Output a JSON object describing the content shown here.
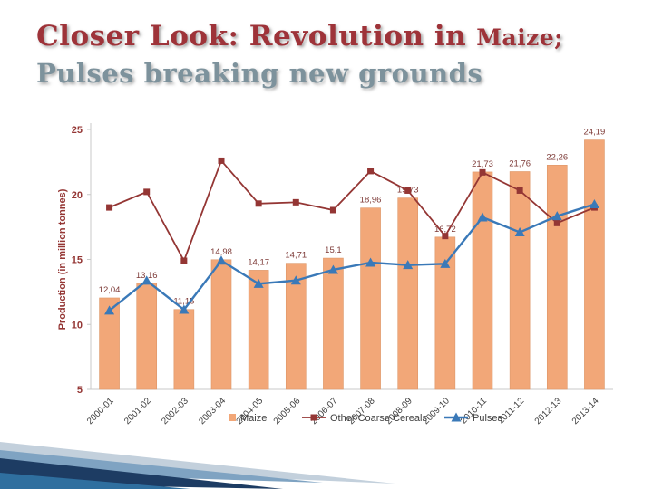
{
  "slide": {
    "title": {
      "line1": "Closer Look: Revolution in",
      "line1_emphasis": "Maize;",
      "line2": "Pulses breaking new grounds",
      "line1_color": "#9E3339",
      "line2_color": "#7D929C"
    }
  },
  "chart_data": {
    "type": "bar",
    "subtype": "combo-bar-and-lines",
    "title": "",
    "xlabel": "",
    "ylabel": "Production (in million tonnes)",
    "ylim": [
      5,
      25
    ],
    "yticks": [
      25,
      20,
      15,
      10,
      5
    ],
    "grid": false,
    "legend_position": "bottom",
    "categories": [
      "2000-01",
      "2001-02",
      "2002-03",
      "2003-04",
      "2004-05",
      "2005-06",
      "2006-07",
      "2007-08",
      "2008-09",
      "2009-10",
      "2010-11",
      "2011-12",
      "2012-13",
      "2013-14"
    ],
    "series": [
      {
        "name": "Maize",
        "render": "bar",
        "color": "#F2A778",
        "edge_color": "#DD9668",
        "values": [
          12.04,
          13.16,
          11.15,
          14.98,
          14.17,
          14.71,
          15.1,
          18.96,
          19.73,
          16.72,
          21.73,
          21.76,
          22.26,
          24.19
        ],
        "value_labels": [
          "12,04",
          "13,16",
          "11,15",
          "14,98",
          "14,17",
          "14,71",
          "15,1",
          "18,96",
          "19,73",
          "16,72",
          "21,73",
          "21,76",
          "22,26",
          "24,19"
        ]
      },
      {
        "name": "Other Coarse Cereals",
        "render": "line",
        "marker": "square",
        "color": "#943634",
        "values": [
          19.0,
          20.2,
          14.9,
          22.6,
          19.3,
          19.4,
          18.8,
          21.8,
          20.3,
          16.8,
          21.7,
          20.3,
          17.8,
          19.0
        ]
      },
      {
        "name": "Pulses",
        "render": "line",
        "marker": "triangle",
        "color": "#3A79B8",
        "values": [
          11.07,
          13.37,
          11.13,
          14.91,
          13.13,
          13.38,
          14.2,
          14.76,
          14.57,
          14.66,
          18.24,
          17.09,
          18.34,
          19.25
        ]
      }
    ],
    "value_label_color": "#7D3A37",
    "axis_tick_color": "#943634",
    "category_label_color": "#404040",
    "legend_text_color": "#404040",
    "axis_line_color": "#C9C9C9"
  },
  "decoration": {
    "colors": [
      "#C3D0DC",
      "#7FA3C2",
      "#1D3C63",
      "#2F6F9F"
    ]
  }
}
